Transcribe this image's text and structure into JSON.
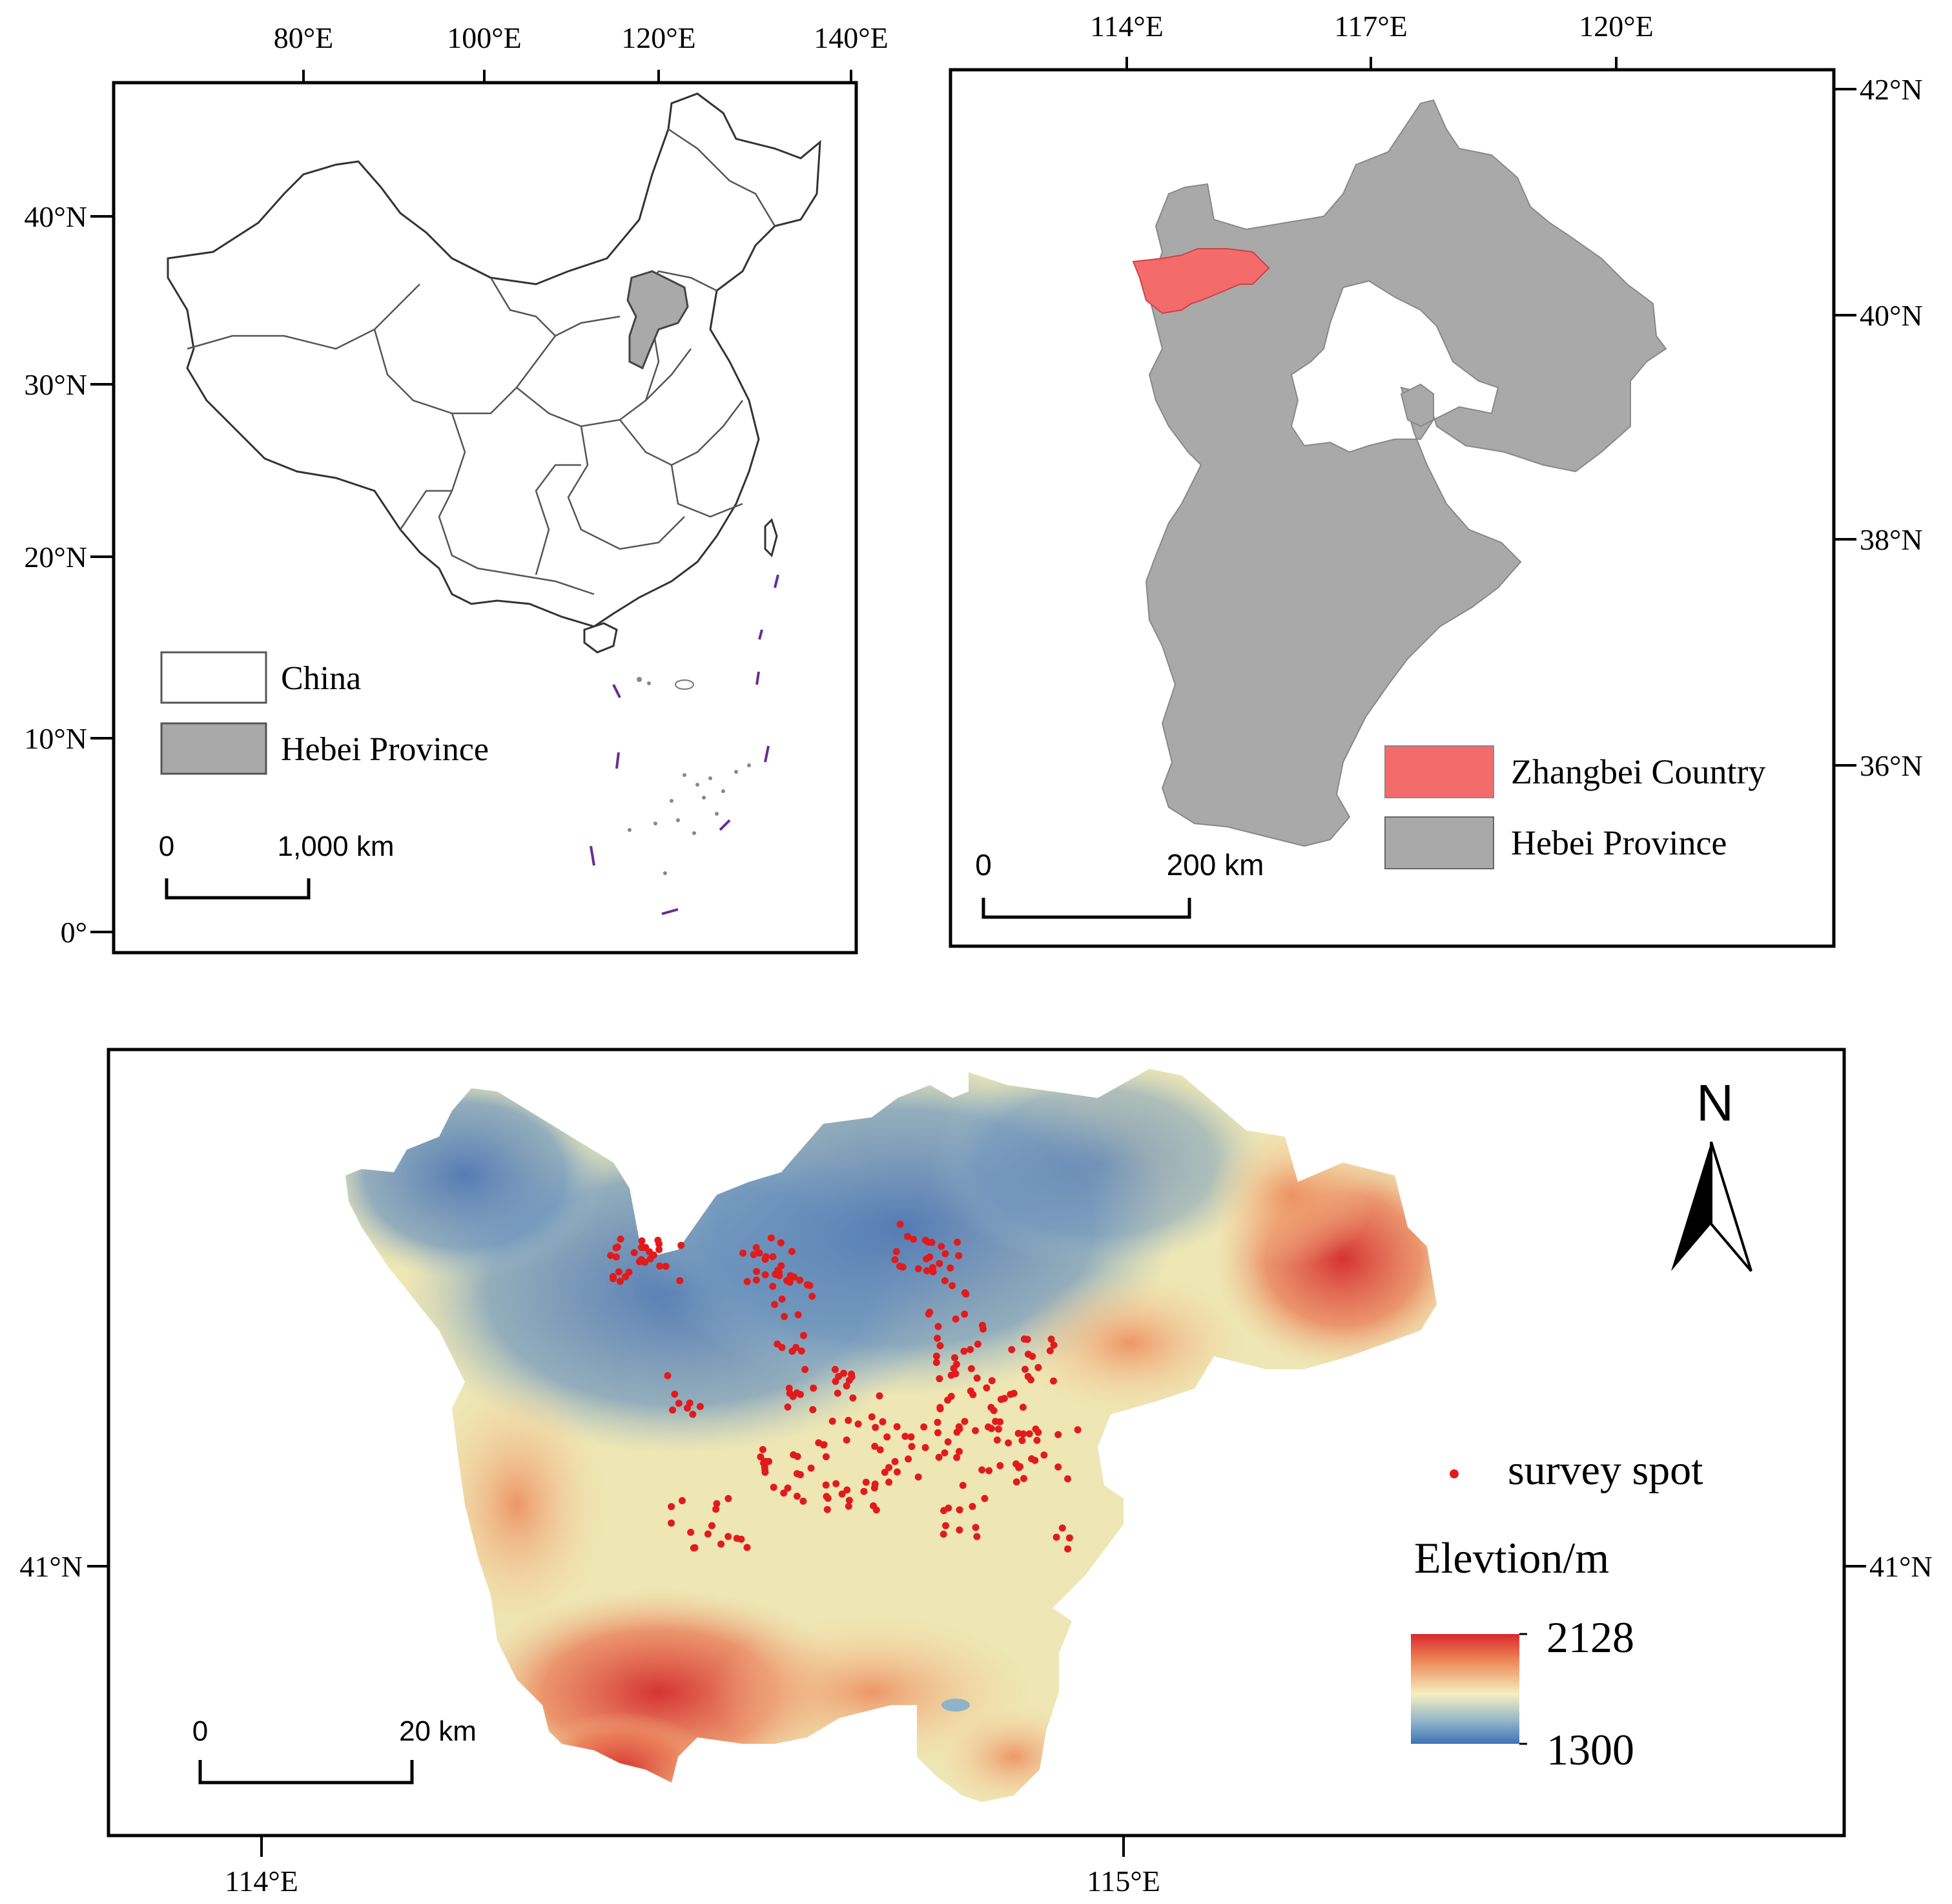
{
  "panel_a": {
    "top_ticks": [
      "80°E",
      "100°E",
      "120°E",
      "140°E"
    ],
    "left_ticks": [
      "40°N",
      "30°N",
      "20°N",
      "10°N",
      "0°"
    ],
    "legend": {
      "china": "China",
      "hebei": "Hebei Province"
    },
    "scale": {
      "zero": "0",
      "distance": "1,000 km"
    },
    "colors": {
      "hebei": "#a9a9a9",
      "china_fill": "#ffffff",
      "islands": "#6a2c91"
    }
  },
  "panel_b": {
    "top_ticks": [
      "114°E",
      "117°E",
      "120°E"
    ],
    "right_ticks": [
      "42°N",
      "40°N",
      "38°N",
      "36°N"
    ],
    "legend": {
      "zhangbei": "Zhangbei Country",
      "hebei": "Hebei Province"
    },
    "scale": {
      "zero": "0",
      "distance": "200 km"
    },
    "colors": {
      "hebei": "#a9a9a9",
      "zhangbei": "#f36b6b"
    }
  },
  "panel_c": {
    "bottom_ticks": [
      "114°E",
      "115°E"
    ],
    "side_ticks": {
      "left": "41°N",
      "right": "41°N"
    },
    "north_arrow": "N",
    "legend": {
      "survey": "survey spot",
      "elev_title": "Elevtion/m",
      "elev_max": "2128",
      "elev_min": "1300"
    },
    "scale": {
      "zero": "0",
      "distance": "20 km"
    },
    "colors": {
      "low": "#4a7ab5",
      "mid": "#f4f0c0",
      "high": "#d8282c",
      "dot": "#e11b1b"
    }
  }
}
